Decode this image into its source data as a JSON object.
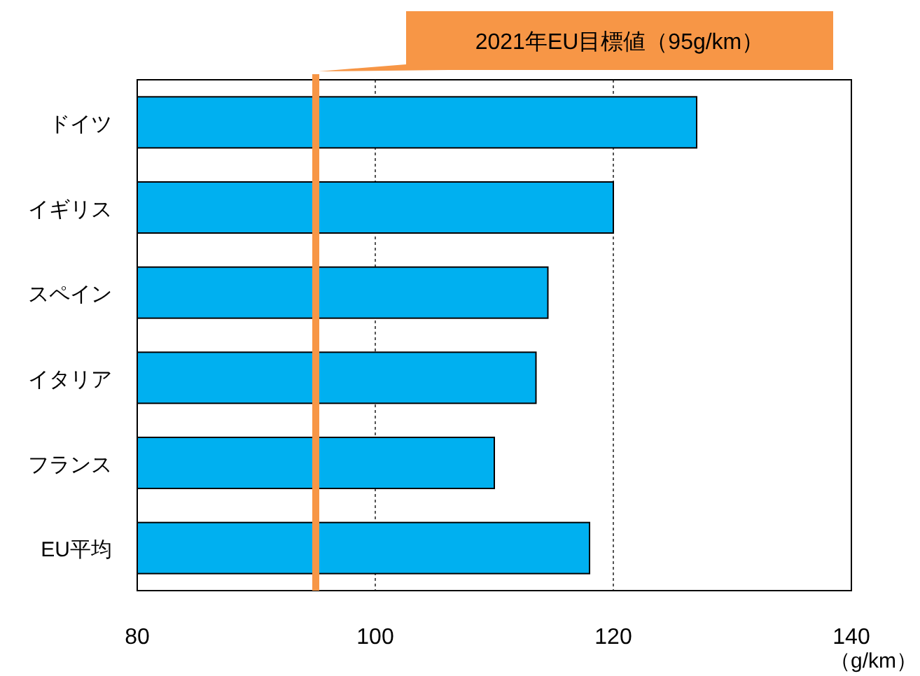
{
  "chart_data": {
    "type": "bar",
    "orientation": "horizontal",
    "categories": [
      "ドイツ",
      "イギリス",
      "スペイン",
      "イタリア",
      "フランス",
      "EU平均"
    ],
    "values": [
      127,
      120,
      114.5,
      113.5,
      110,
      118
    ],
    "color": "#00b0f0",
    "xlim": [
      80,
      140
    ],
    "xticks": [
      80,
      100,
      120,
      140
    ],
    "xlabel": "（g/km）",
    "grid": "x",
    "ref_lines": [
      {
        "axis": "x",
        "value": 95,
        "label": "2021年EU目標値（95g/km）",
        "color": "#f79646"
      }
    ]
  }
}
